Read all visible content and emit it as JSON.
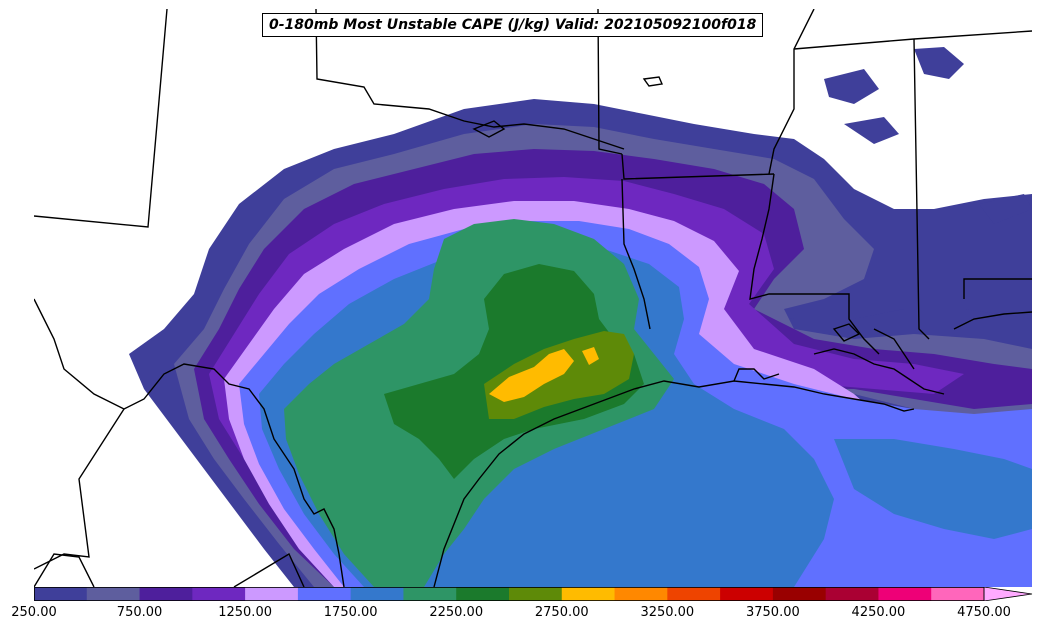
{
  "title": "0-180mb Most Unstable CAPE (J/kg) Valid: 202105092100f018",
  "colorbar": {
    "min": 250,
    "step": 250,
    "colors": [
      "#3f3f9a",
      "#5e5e9e",
      "#4e1f9c",
      "#6e28c0",
      "#cc99ff",
      "#6070ff",
      "#3478cc",
      "#2e9566",
      "#1b7a2c",
      "#5e8a08",
      "#ffbb00",
      "#ff8800",
      "#ee4400",
      "#cc0000",
      "#990000",
      "#aa0033",
      "#ee0077",
      "#ff66bb"
    ],
    "extend_color": "#ffaaff",
    "tick_labels": [
      "250.00",
      "750.00",
      "1250.00",
      "1750.00",
      "2250.00",
      "2750.00",
      "3250.00",
      "3750.00",
      "4250.00",
      "4750.00"
    ]
  },
  "map_colors": {
    "background": "#ffffff",
    "borders": "#000000"
  }
}
